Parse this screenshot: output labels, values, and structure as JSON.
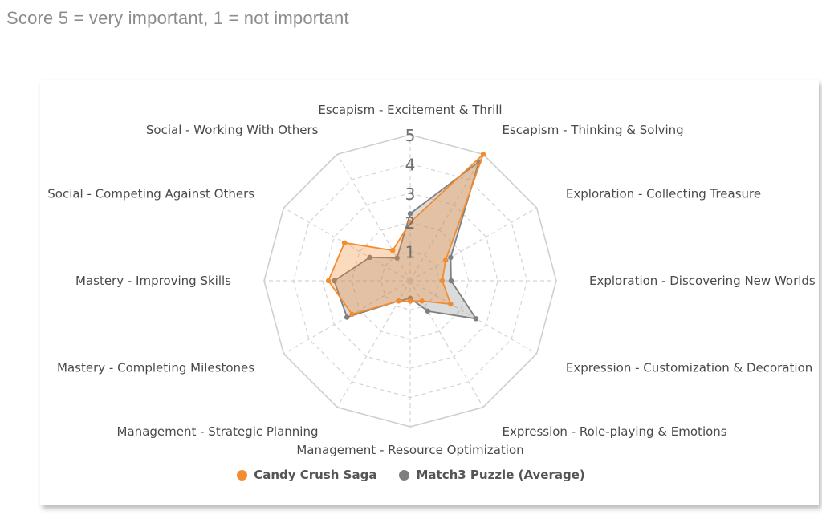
{
  "note": "Score 5 = very important, 1 = not important",
  "colors": {
    "candy": "#f28c32",
    "match3": "#7f7f7f",
    "grid": "#d4d4d4"
  },
  "chart_data": {
    "type": "radar",
    "title": "",
    "axes": [
      "Escapism - Excitement & Thrill",
      "Escapism - Thinking & Solving",
      "Exploration - Collecting Treasure",
      "Exploration - Discovering New Worlds",
      "Expression - Customization & Decoration",
      "Expression - Role-playing & Emotions",
      "Management - Resource Optimization",
      "Management - Strategic Planning",
      "Mastery - Completing Milestones",
      "Mastery - Improving Skills",
      "Social - Competing Against Others",
      "Social - Working With Others"
    ],
    "ticks": [
      "1",
      "2",
      "3",
      "4",
      "5"
    ],
    "rmax": 5,
    "legend_position": "bottom",
    "series": [
      {
        "name": "Candy Crush Saga",
        "values": [
          2.0,
          5.0,
          1.4,
          1.1,
          1.6,
          0.8,
          0.7,
          0.8,
          2.3,
          2.8,
          2.6,
          1.2
        ]
      },
      {
        "name": "Match3 Puzzle (Average)",
        "values": [
          2.3,
          4.7,
          1.6,
          1.4,
          2.6,
          1.2,
          0.6,
          0.8,
          2.5,
          2.6,
          1.6,
          0.9
        ]
      }
    ]
  }
}
